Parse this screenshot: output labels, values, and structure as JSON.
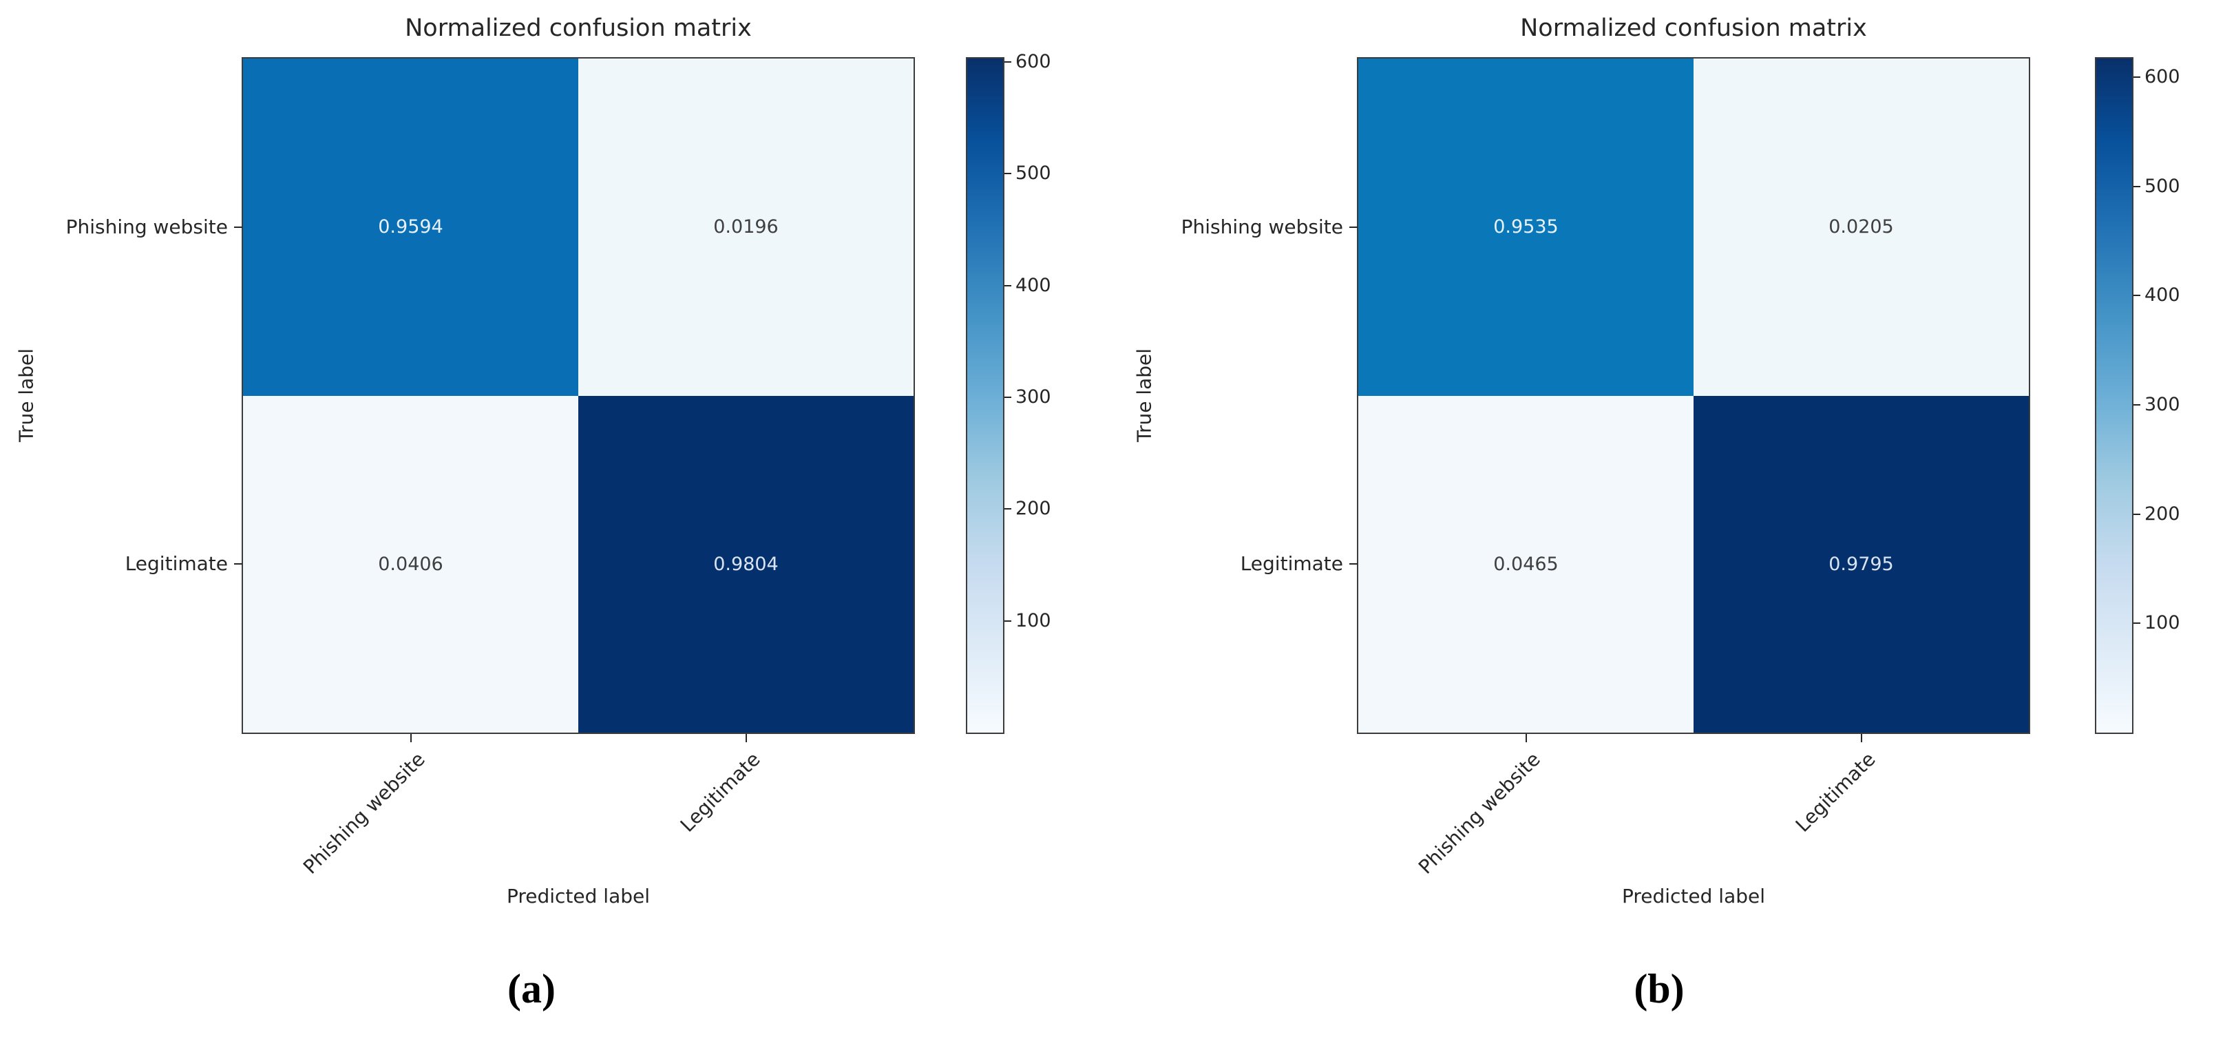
{
  "figure": {
    "background": "#ffffff",
    "frame_color": "#3c3c3c",
    "text_color": "#262626",
    "colormap_stops": [
      "#f7fbff",
      "#deebf7",
      "#c6dbef",
      "#9ecae1",
      "#6baed6",
      "#4292c6",
      "#2171b5",
      "#08519c",
      "#08306b"
    ]
  },
  "chart_data": [
    {
      "type": "heatmap",
      "panel_label": "(a)",
      "title": "Normalized confusion matrix",
      "xlabel": "Predicted label",
      "ylabel": "True label",
      "x_categories": [
        "Phishing website",
        "Legitimate"
      ],
      "y_categories": [
        "Phishing website",
        "Legitimate"
      ],
      "values": [
        [
          0.9594,
          0.0196
        ],
        [
          0.0406,
          0.9804
        ]
      ],
      "cell_fill": [
        [
          "#0a6eb4",
          "#f0f7fb"
        ],
        [
          "#f2f8fc",
          "#04306d"
        ]
      ],
      "cell_text": [
        [
          "#e8f1f9",
          "#3f3f3f"
        ],
        [
          "#3f3f3f",
          "#d8e4f1"
        ]
      ],
      "colorbar": {
        "ticks": [
          100,
          200,
          300,
          400,
          500,
          600
        ],
        "range": [
          0,
          603
        ],
        "colormap": "Blues",
        "position": "right"
      },
      "grid": false,
      "legend_position": "none"
    },
    {
      "type": "heatmap",
      "panel_label": "(b)",
      "title": "Normalized confusion matrix",
      "xlabel": "Predicted label",
      "ylabel": "True label",
      "x_categories": [
        "Phishing website",
        "Legitimate"
      ],
      "y_categories": [
        "Phishing website",
        "Legitimate"
      ],
      "values": [
        [
          0.9535,
          0.0205
        ],
        [
          0.0465,
          0.9795
        ]
      ],
      "cell_fill": [
        [
          "#0a77b8",
          "#f0f7fb"
        ],
        [
          "#f2f8fc",
          "#04306d"
        ]
      ],
      "cell_text": [
        [
          "#e8f1f9",
          "#3f3f3f"
        ],
        [
          "#3f3f3f",
          "#d8e4f1"
        ]
      ],
      "colorbar": {
        "ticks": [
          100,
          200,
          300,
          400,
          500,
          600
        ],
        "range": [
          0,
          617
        ],
        "colormap": "Blues",
        "position": "right"
      },
      "grid": false,
      "legend_position": "none"
    }
  ]
}
